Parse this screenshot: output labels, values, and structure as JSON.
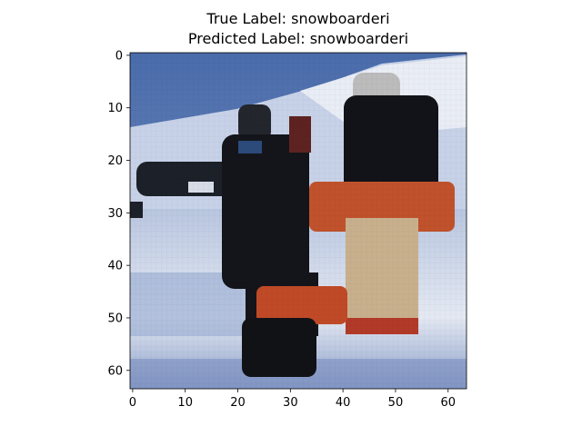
{
  "title": {
    "line1": "True Label: snowboarderi",
    "line2": "Predicted Label: snowboarderi"
  },
  "image": {
    "grid_resolution": 64,
    "description_icon": "pixelated-photo-two-people-snow"
  },
  "axes": {
    "x_ticks": [
      "0",
      "10",
      "20",
      "30",
      "40",
      "50",
      "60"
    ],
    "y_ticks": [
      "0",
      "10",
      "20",
      "30",
      "40",
      "50",
      "60"
    ],
    "x_range": [
      -0.5,
      63.5
    ],
    "y_range": [
      -0.5,
      63.5
    ]
  },
  "colors": {
    "sky": "#4d6fae",
    "snow": "#dfe6f2",
    "jacket_dark": "#15161c",
    "orange": "#c6542a",
    "pants_tan": "#c9b08d"
  }
}
